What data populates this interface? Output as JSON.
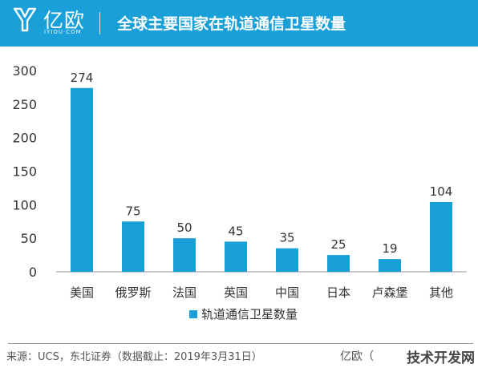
{
  "header": {
    "brand": "亿欧",
    "brand_sub": "IYIOU·COM",
    "title": "全球主要国家在轨道通信卫星数量"
  },
  "chart_data": {
    "type": "bar",
    "categories": [
      "美国",
      "俄罗斯",
      "法国",
      "英国",
      "中国",
      "日本",
      "卢森堡",
      "其他"
    ],
    "series": [
      {
        "name": "轨道通信卫星数量",
        "values": [
          274,
          75,
          50,
          45,
          35,
          25,
          19,
          104
        ]
      }
    ],
    "ylim": [
      0,
      300
    ],
    "yticks": [
      0,
      50,
      100,
      150,
      200,
      250,
      300
    ],
    "grid": false,
    "legend": "bottom",
    "bar_color": "#1aa0d8"
  },
  "footer": {
    "source": "来源：UCS，东北证券（数据截止：2019年3月31日）",
    "brand": "亿欧（",
    "watermark": "技术开发网"
  }
}
